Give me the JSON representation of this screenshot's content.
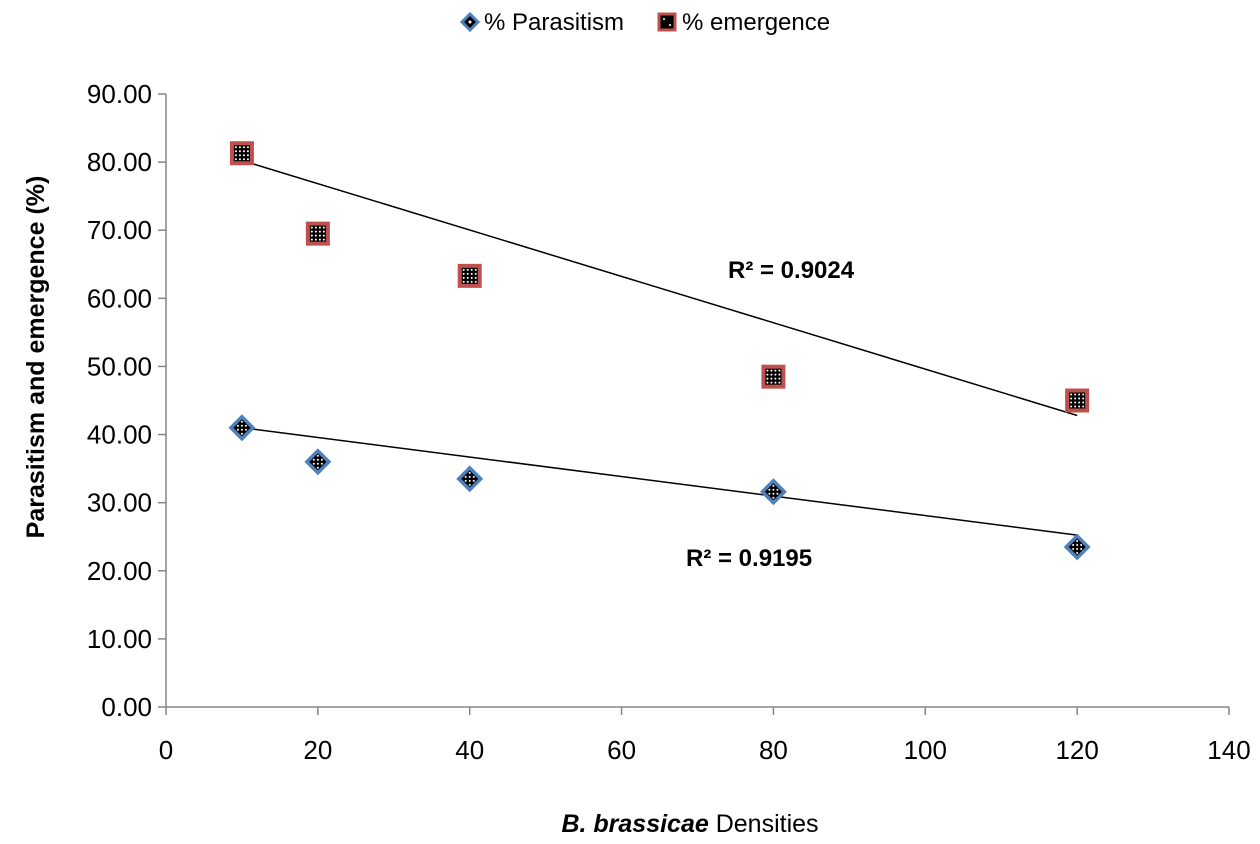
{
  "chart_data": {
    "type": "scatter",
    "xlabel_italic": "B. brassicae",
    "xlabel_rest": " Densities",
    "ylabel": "Parasitism and emergence (%)",
    "xlim": [
      0,
      140
    ],
    "ylim": [
      0,
      90
    ],
    "x_ticks": [
      "0",
      "20",
      "40",
      "60",
      "80",
      "100",
      "120",
      "140"
    ],
    "y_ticks": [
      "0.00",
      "10.00",
      "20.00",
      "30.00",
      "40.00",
      "50.00",
      "60.00",
      "70.00",
      "80.00",
      "90.00"
    ],
    "grid": false,
    "legend_position": "top-center",
    "x_categories": [
      "10",
      "20",
      "40",
      "80",
      "120"
    ],
    "series": [
      {
        "name": "% Parasitism",
        "marker": "diamond",
        "color": "#4f81bd",
        "x": [
          1,
          2,
          3,
          4,
          5
        ],
        "values": [
          41.0,
          36.0,
          33.5,
          31.6,
          23.5
        ],
        "trendline": {
          "type": "linear",
          "r_squared_label": "R² = 0.9195"
        }
      },
      {
        "name": "% emergence",
        "marker": "square",
        "color": "#c0504d",
        "x": [
          1,
          2,
          3,
          4,
          5
        ],
        "values": [
          81.3,
          69.5,
          63.3,
          48.5,
          45.0
        ],
        "trendline": {
          "type": "linear",
          "r_squared_label": "R² = 0.9024"
        }
      }
    ]
  }
}
